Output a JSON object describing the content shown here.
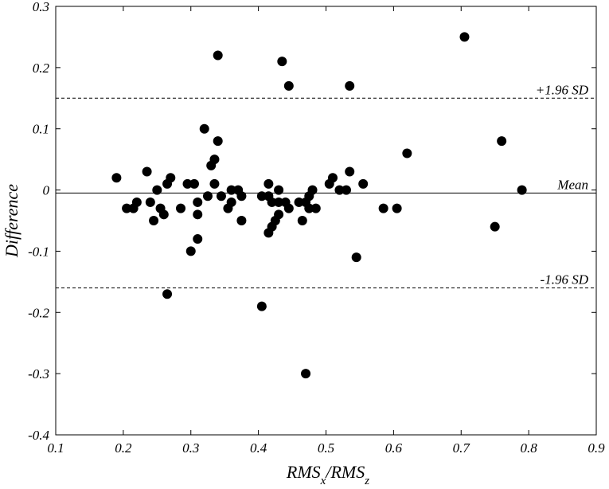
{
  "chart_data": {
    "type": "scatter",
    "title": "",
    "ylabel": "Difference",
    "xlabel": {
      "parts": [
        "RMS",
        "x",
        "/RMS",
        "z"
      ]
    },
    "xlim": [
      0.1,
      0.9
    ],
    "ylim": [
      -0.4,
      0.3
    ],
    "x_ticks": [
      0.1,
      0.2,
      0.3,
      0.4,
      0.5,
      0.6,
      0.7,
      0.8,
      0.9
    ],
    "x_tick_labels": [
      "0.1",
      "0.2",
      "0.3",
      "0.4",
      "0.5",
      "0.6",
      "0.7",
      "0.8",
      "0.9"
    ],
    "y_ticks": [
      -0.4,
      -0.3,
      -0.2,
      -0.1,
      0,
      0.1,
      0.2,
      0.3
    ],
    "y_tick_labels": [
      "-0.4",
      "-0.3",
      "-0.2",
      "-0.1",
      "0",
      "0.1",
      "0.2",
      "0.3"
    ],
    "grid": false,
    "reference_lines": [
      {
        "label": "+1.96 SD",
        "y": 0.15,
        "style": "dashed"
      },
      {
        "label": "Mean",
        "y": -0.005,
        "style": "solid"
      },
      {
        "label": "-1.96 SD",
        "y": -0.16,
        "style": "dashed"
      }
    ],
    "marker_color": "#000000",
    "points": [
      [
        0.19,
        0.02
      ],
      [
        0.205,
        -0.03
      ],
      [
        0.215,
        -0.03
      ],
      [
        0.22,
        -0.02
      ],
      [
        0.235,
        0.03
      ],
      [
        0.24,
        -0.02
      ],
      [
        0.245,
        -0.05
      ],
      [
        0.25,
        0.0
      ],
      [
        0.255,
        -0.03
      ],
      [
        0.26,
        -0.04
      ],
      [
        0.265,
        0.01
      ],
      [
        0.265,
        -0.17
      ],
      [
        0.27,
        0.02
      ],
      [
        0.285,
        -0.03
      ],
      [
        0.295,
        0.01
      ],
      [
        0.3,
        -0.1
      ],
      [
        0.305,
        0.01
      ],
      [
        0.31,
        -0.02
      ],
      [
        0.31,
        -0.04
      ],
      [
        0.31,
        -0.08
      ],
      [
        0.32,
        0.1
      ],
      [
        0.325,
        -0.01
      ],
      [
        0.33,
        0.04
      ],
      [
        0.335,
        0.05
      ],
      [
        0.335,
        0.01
      ],
      [
        0.34,
        0.22
      ],
      [
        0.34,
        0.08
      ],
      [
        0.345,
        -0.01
      ],
      [
        0.355,
        -0.03
      ],
      [
        0.36,
        0.0
      ],
      [
        0.36,
        -0.02
      ],
      [
        0.37,
        0.0
      ],
      [
        0.375,
        -0.01
      ],
      [
        0.375,
        -0.05
      ],
      [
        0.405,
        -0.01
      ],
      [
        0.405,
        -0.19
      ],
      [
        0.415,
        0.01
      ],
      [
        0.415,
        -0.01
      ],
      [
        0.415,
        -0.07
      ],
      [
        0.42,
        -0.02
      ],
      [
        0.42,
        -0.06
      ],
      [
        0.425,
        -0.05
      ],
      [
        0.43,
        -0.02
      ],
      [
        0.43,
        0.0
      ],
      [
        0.43,
        -0.04
      ],
      [
        0.435,
        0.21
      ],
      [
        0.44,
        -0.02
      ],
      [
        0.445,
        0.17
      ],
      [
        0.445,
        -0.03
      ],
      [
        0.46,
        -0.02
      ],
      [
        0.465,
        -0.05
      ],
      [
        0.47,
        -0.3
      ],
      [
        0.47,
        -0.02
      ],
      [
        0.475,
        -0.01
      ],
      [
        0.475,
        -0.03
      ],
      [
        0.48,
        0.0
      ],
      [
        0.485,
        -0.03
      ],
      [
        0.505,
        0.01
      ],
      [
        0.51,
        0.02
      ],
      [
        0.52,
        0.0
      ],
      [
        0.53,
        0.0
      ],
      [
        0.535,
        0.17
      ],
      [
        0.535,
        0.03
      ],
      [
        0.545,
        -0.11
      ],
      [
        0.555,
        0.01
      ],
      [
        0.585,
        -0.03
      ],
      [
        0.605,
        -0.03
      ],
      [
        0.62,
        0.06
      ],
      [
        0.705,
        0.25
      ],
      [
        0.75,
        -0.06
      ],
      [
        0.76,
        0.08
      ],
      [
        0.79,
        0.0
      ]
    ]
  }
}
